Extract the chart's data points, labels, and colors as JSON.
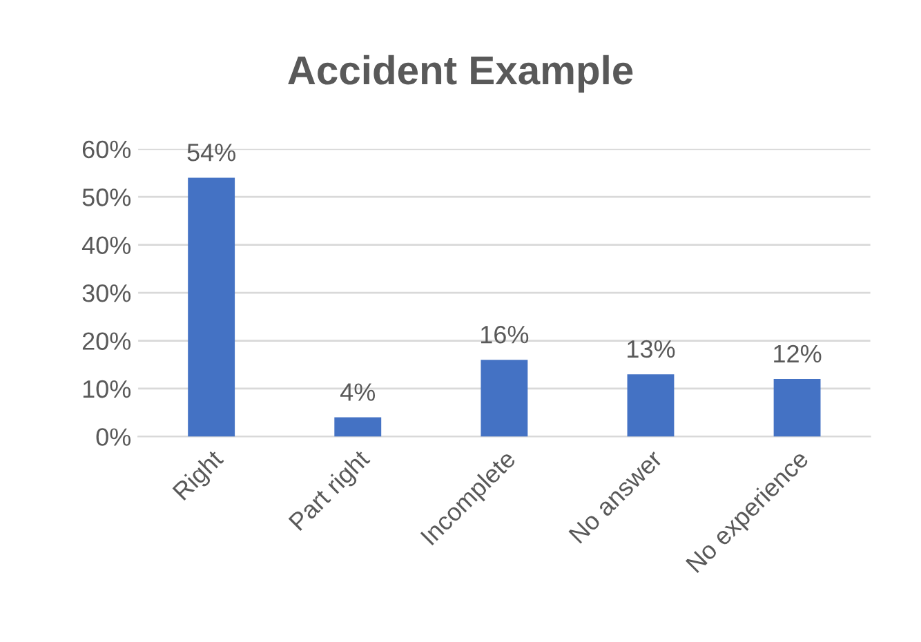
{
  "chart_data": {
    "type": "bar",
    "title": "Accident Example",
    "categories": [
      "Right",
      "Part right",
      "Incomplete",
      "No answer",
      "No experience"
    ],
    "values": [
      54,
      4,
      16,
      13,
      12
    ],
    "value_labels": [
      "54%",
      "4%",
      "16%",
      "13%",
      "12%"
    ],
    "color": "#4472c4",
    "ylim": [
      0,
      60
    ],
    "yticks": [
      {
        "value": 0,
        "label": "0%"
      },
      {
        "value": 10,
        "label": "10%"
      },
      {
        "value": 20,
        "label": "20%"
      },
      {
        "value": 30,
        "label": "30%"
      },
      {
        "value": 40,
        "label": "40%"
      },
      {
        "value": 50,
        "label": "50%"
      },
      {
        "value": 60,
        "label": "60%"
      }
    ],
    "grid": "y",
    "legend": false
  }
}
